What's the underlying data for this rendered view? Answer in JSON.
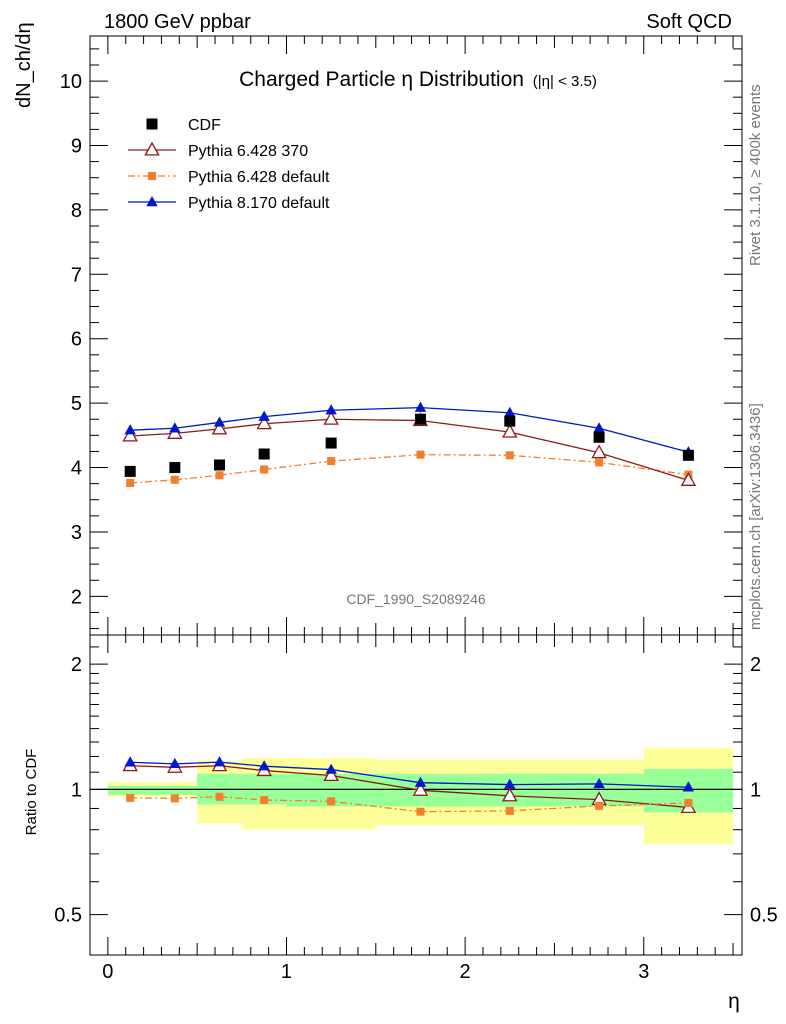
{
  "header": {
    "left": "1800 GeV ppbar",
    "right": "Soft QCD"
  },
  "side": {
    "top": "Rivet 3.1.10, ≥ 400k events",
    "bottom": "mcplots.cern.ch [arXiv:1306.3436]"
  },
  "colors": {
    "cdf": "#000000",
    "p6_370": "#8b1a1a",
    "p6_default": "#f47f2a",
    "p8_default": "#0018c8",
    "band_inner": "#99ff99",
    "band_outer": "#ffff99"
  },
  "chart_data": [
    {
      "type": "scatter",
      "title": "Charged Particle η Distribution",
      "title_cut": "(|η| < 3.5)",
      "ylabel": "dN_ch/dη",
      "analysis_id": "CDF_1990_S2089246",
      "xlim": [
        -0.1,
        3.55
      ],
      "ylim": [
        1.4,
        10.7
      ],
      "yticks": [
        "2",
        "3",
        "4",
        "5",
        "6",
        "7",
        "8",
        "9",
        "10"
      ],
      "legend_position": "top-left",
      "x": [
        0.125,
        0.375,
        0.625,
        0.875,
        1.25,
        1.75,
        2.25,
        2.75,
        3.25
      ],
      "series": [
        {
          "name": "CDF",
          "marker": "square",
          "values": [
            3.94,
            4.0,
            4.04,
            4.21,
            4.38,
            4.75,
            4.72,
            4.47,
            4.19
          ]
        },
        {
          "name": "Pythia 6.428 370",
          "marker": "open-triangle",
          "values": [
            4.49,
            4.53,
            4.6,
            4.68,
            4.75,
            4.73,
            4.55,
            4.23,
            3.8
          ]
        },
        {
          "name": "Pythia 6.428 default",
          "marker": "small-square",
          "values": [
            3.76,
            3.81,
            3.88,
            3.97,
            4.1,
            4.2,
            4.19,
            4.08,
            3.89
          ]
        },
        {
          "name": "Pythia 8.170 default",
          "marker": "triangle",
          "values": [
            4.58,
            4.61,
            4.7,
            4.79,
            4.89,
            4.93,
            4.85,
            4.61,
            4.24
          ]
        }
      ]
    },
    {
      "type": "line",
      "xlabel": "η",
      "ylabel": "Ratio to CDF",
      "log_y": true,
      "ylim": [
        0.4,
        2.35
      ],
      "yticks": [
        "0.5",
        "1",
        "2"
      ],
      "xticks": [
        "0",
        "1",
        "2",
        "3"
      ],
      "x": [
        0.125,
        0.375,
        0.625,
        0.875,
        1.25,
        1.75,
        2.25,
        2.75,
        3.25
      ],
      "bin_edges": [
        0.0,
        0.5,
        0.75,
        1.0,
        1.5,
        2.0,
        2.5,
        3.0,
        3.5
      ],
      "band_inner": [
        {
          "lo": 0.97,
          "hi": 1.02
        },
        {
          "lo": 0.92,
          "hi": 1.09
        },
        {
          "lo": 0.92,
          "hi": 1.09
        },
        {
          "lo": 0.91,
          "hi": 1.09
        },
        {
          "lo": 0.91,
          "hi": 1.09
        },
        {
          "lo": 0.91,
          "hi": 1.09
        },
        {
          "lo": 0.91,
          "hi": 1.09
        },
        {
          "lo": 0.88,
          "hi": 1.12
        }
      ],
      "band_outer": [
        {
          "lo": 0.96,
          "hi": 1.04
        },
        {
          "lo": 0.83,
          "hi": 1.17
        },
        {
          "lo": 0.8,
          "hi": 1.19
        },
        {
          "lo": 0.8,
          "hi": 1.19
        },
        {
          "lo": 0.82,
          "hi": 1.18
        },
        {
          "lo": 0.82,
          "hi": 1.18
        },
        {
          "lo": 0.82,
          "hi": 1.18
        },
        {
          "lo": 0.74,
          "hi": 1.26
        }
      ],
      "series": [
        {
          "name": "Pythia 6.428 370",
          "values": [
            1.14,
            1.13,
            1.14,
            1.11,
            1.08,
            0.995,
            0.965,
            0.945,
            0.905
          ]
        },
        {
          "name": "Pythia 6.428 default",
          "values": [
            0.954,
            0.952,
            0.96,
            0.943,
            0.936,
            0.884,
            0.888,
            0.913,
            0.928
          ]
        },
        {
          "name": "Pythia 8.170 default",
          "values": [
            1.162,
            1.152,
            1.163,
            1.137,
            1.116,
            1.038,
            1.027,
            1.031,
            1.012
          ]
        }
      ]
    }
  ]
}
